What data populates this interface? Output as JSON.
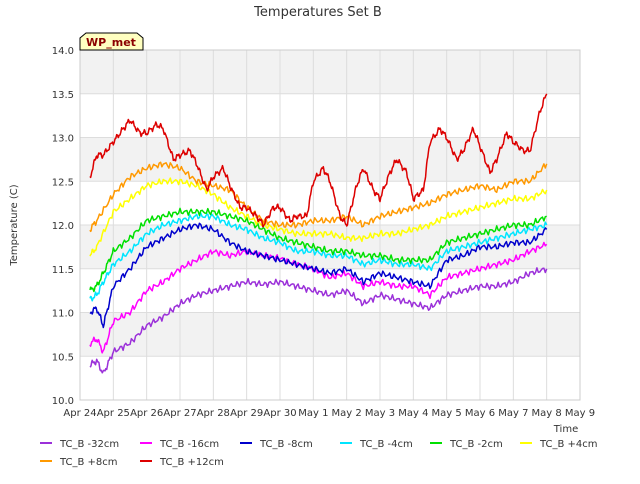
{
  "chart_data": {
    "type": "line",
    "title": "Temperatures Set B",
    "xlabel": "Time",
    "ylabel": "Temperature (C)",
    "ylim": [
      10.0,
      14.0
    ],
    "xlim": [
      0,
      15
    ],
    "x_tick_labels": [
      "Apr 24",
      "Apr 25",
      "Apr 26",
      "Apr 27",
      "Apr 28",
      "Apr 29",
      "Apr 30",
      "May 1",
      "May 2",
      "May 3",
      "May 4",
      "May 5",
      "May 6",
      "May 7",
      "May 8",
      "May 9"
    ],
    "y_ticks": [
      10.0,
      10.5,
      11.0,
      11.5,
      12.0,
      12.5,
      13.0,
      13.5,
      14.0
    ],
    "y_tick_labels": [
      "10.0",
      "10.5",
      "11.0",
      "11.5",
      "12.0",
      "12.5",
      "13.0",
      "13.5",
      "14.0"
    ],
    "grid": true,
    "banded_background": true,
    "annotation": "WP_met",
    "legend_position": "bottom",
    "series": [
      {
        "name": "TC_B -32cm",
        "color": "#9b30d9",
        "x": [
          0.3,
          0.5,
          0.7,
          1.0,
          1.5,
          2.0,
          2.5,
          3.0,
          3.5,
          4.0,
          4.5,
          5.0,
          5.5,
          6.0,
          6.5,
          7.0,
          7.5,
          8.0,
          8.5,
          9.0,
          9.5,
          10.0,
          10.5,
          11.0,
          11.5,
          12.0,
          12.5,
          13.0,
          13.5,
          14.0
        ],
        "y": [
          10.4,
          10.45,
          10.3,
          10.55,
          10.65,
          10.85,
          10.95,
          11.1,
          11.2,
          11.25,
          11.3,
          11.35,
          11.32,
          11.35,
          11.3,
          11.25,
          11.2,
          11.25,
          11.1,
          11.2,
          11.15,
          11.1,
          11.05,
          11.2,
          11.25,
          11.3,
          11.3,
          11.35,
          11.45,
          11.5
        ]
      },
      {
        "name": "TC_B -16cm",
        "color": "#ff00ff",
        "x": [
          0.3,
          0.5,
          0.7,
          1.0,
          1.5,
          2.0,
          2.5,
          3.0,
          3.5,
          4.0,
          4.5,
          5.0,
          5.5,
          6.0,
          6.5,
          7.0,
          7.5,
          8.0,
          8.5,
          9.0,
          9.5,
          10.0,
          10.5,
          11.0,
          11.5,
          12.0,
          12.5,
          13.0,
          13.5,
          14.0
        ],
        "y": [
          10.65,
          10.7,
          10.55,
          10.9,
          11.0,
          11.25,
          11.35,
          11.5,
          11.6,
          11.7,
          11.65,
          11.7,
          11.65,
          11.62,
          11.55,
          11.5,
          11.4,
          11.45,
          11.3,
          11.35,
          11.3,
          11.3,
          11.2,
          11.4,
          11.45,
          11.5,
          11.55,
          11.6,
          11.7,
          11.78
        ]
      },
      {
        "name": "TC_B -8cm",
        "color": "#0000cc",
        "x": [
          0.3,
          0.5,
          0.7,
          1.0,
          1.5,
          2.0,
          2.5,
          3.0,
          3.5,
          4.0,
          4.5,
          5.0,
          5.5,
          6.0,
          6.5,
          7.0,
          7.5,
          8.0,
          8.5,
          9.0,
          9.5,
          10.0,
          10.5,
          11.0,
          11.5,
          12.0,
          12.5,
          13.0,
          13.5,
          14.0
        ],
        "y": [
          11.0,
          11.05,
          10.85,
          11.3,
          11.5,
          11.75,
          11.85,
          11.95,
          12.0,
          11.95,
          11.8,
          11.7,
          11.65,
          11.6,
          11.55,
          11.5,
          11.45,
          11.5,
          11.35,
          11.45,
          11.4,
          11.35,
          11.3,
          11.6,
          11.65,
          11.75,
          11.75,
          11.8,
          11.8,
          11.95
        ]
      },
      {
        "name": "TC_B -4cm",
        "color": "#00e5ff",
        "x": [
          0.3,
          0.5,
          0.7,
          1.0,
          1.5,
          2.0,
          2.5,
          3.0,
          3.5,
          4.0,
          4.5,
          5.0,
          5.5,
          6.0,
          6.5,
          7.0,
          7.5,
          8.0,
          8.5,
          9.0,
          9.5,
          10.0,
          10.5,
          11.0,
          11.5,
          12.0,
          12.5,
          13.0,
          13.5,
          14.0
        ],
        "y": [
          11.15,
          11.2,
          11.35,
          11.55,
          11.7,
          11.9,
          12.0,
          12.05,
          12.1,
          12.1,
          12.0,
          11.95,
          11.85,
          11.8,
          11.7,
          11.7,
          11.65,
          11.65,
          11.55,
          11.6,
          11.55,
          11.55,
          11.5,
          11.7,
          11.75,
          11.8,
          11.85,
          11.9,
          11.95,
          12.0
        ]
      },
      {
        "name": "TC_B -2cm",
        "color": "#00e000",
        "x": [
          0.3,
          0.5,
          0.7,
          1.0,
          1.5,
          2.0,
          2.5,
          3.0,
          3.5,
          4.0,
          4.5,
          5.0,
          5.5,
          6.0,
          6.5,
          7.0,
          7.5,
          8.0,
          8.5,
          9.0,
          9.5,
          10.0,
          10.5,
          11.0,
          11.5,
          12.0,
          12.5,
          13.0,
          13.5,
          14.0
        ],
        "y": [
          11.25,
          11.3,
          11.45,
          11.7,
          11.85,
          12.05,
          12.1,
          12.15,
          12.15,
          12.15,
          12.1,
          12.05,
          11.95,
          11.85,
          11.8,
          11.75,
          11.7,
          11.7,
          11.65,
          11.65,
          11.6,
          11.6,
          11.6,
          11.8,
          11.85,
          11.9,
          11.95,
          12.0,
          12.0,
          12.1
        ]
      },
      {
        "name": "TC_B +4cm",
        "color": "#ffff00",
        "x": [
          0.3,
          0.5,
          1.0,
          1.5,
          2.0,
          2.5,
          3.0,
          3.5,
          4.0,
          4.5,
          5.0,
          5.5,
          6.0,
          6.5,
          7.0,
          7.5,
          8.0,
          8.5,
          9.0,
          9.5,
          10.0,
          10.5,
          11.0,
          11.5,
          12.0,
          12.5,
          13.0,
          13.5,
          14.0
        ],
        "y": [
          11.65,
          11.75,
          12.15,
          12.3,
          12.45,
          12.5,
          12.5,
          12.45,
          12.35,
          12.2,
          12.1,
          12.0,
          11.95,
          11.9,
          11.9,
          11.9,
          11.85,
          11.85,
          11.9,
          11.9,
          11.95,
          12.0,
          12.1,
          12.15,
          12.2,
          12.25,
          12.3,
          12.3,
          12.4
        ]
      },
      {
        "name": "TC_B +8cm",
        "color": "#ff9900",
        "x": [
          0.3,
          0.5,
          1.0,
          1.5,
          2.0,
          2.5,
          3.0,
          3.5,
          4.0,
          4.5,
          5.0,
          5.5,
          6.0,
          6.5,
          7.0,
          7.5,
          8.0,
          8.5,
          9.0,
          9.5,
          10.0,
          10.5,
          11.0,
          11.5,
          12.0,
          12.5,
          13.0,
          13.5,
          14.0
        ],
        "y": [
          11.95,
          12.05,
          12.35,
          12.55,
          12.65,
          12.7,
          12.65,
          12.5,
          12.45,
          12.4,
          12.2,
          12.05,
          12.0,
          12.0,
          12.05,
          12.05,
          12.1,
          12.0,
          12.1,
          12.15,
          12.2,
          12.25,
          12.35,
          12.4,
          12.45,
          12.4,
          12.5,
          12.5,
          12.7
        ]
      },
      {
        "name": "TC_B +12cm",
        "color": "#dd0000",
        "x": [
          0.3,
          0.5,
          0.7,
          1.0,
          1.3,
          1.5,
          1.8,
          2.0,
          2.3,
          2.5,
          2.8,
          3.0,
          3.3,
          3.5,
          3.8,
          4.0,
          4.3,
          4.5,
          4.8,
          5.0,
          5.3,
          5.5,
          5.8,
          6.0,
          6.3,
          6.5,
          6.8,
          7.0,
          7.3,
          7.5,
          7.8,
          8.0,
          8.3,
          8.5,
          8.8,
          9.0,
          9.3,
          9.5,
          9.8,
          10.0,
          10.3,
          10.5,
          10.8,
          11.0,
          11.3,
          11.5,
          11.8,
          12.0,
          12.3,
          12.5,
          12.8,
          13.0,
          13.3,
          13.5,
          13.8,
          14.0
        ],
        "y": [
          12.55,
          12.8,
          12.8,
          12.95,
          13.1,
          13.2,
          13.05,
          13.05,
          13.15,
          13.1,
          12.75,
          12.8,
          12.85,
          12.7,
          12.4,
          12.55,
          12.65,
          12.45,
          12.2,
          12.2,
          12.1,
          12.0,
          12.2,
          12.2,
          12.05,
          12.1,
          12.1,
          12.5,
          12.65,
          12.5,
          12.1,
          12.0,
          12.45,
          12.65,
          12.4,
          12.3,
          12.6,
          12.75,
          12.6,
          12.3,
          12.4,
          12.95,
          13.1,
          13.0,
          12.75,
          12.85,
          13.1,
          12.9,
          12.6,
          12.75,
          13.05,
          12.95,
          12.85,
          12.85,
          13.3,
          13.5
        ]
      }
    ]
  }
}
